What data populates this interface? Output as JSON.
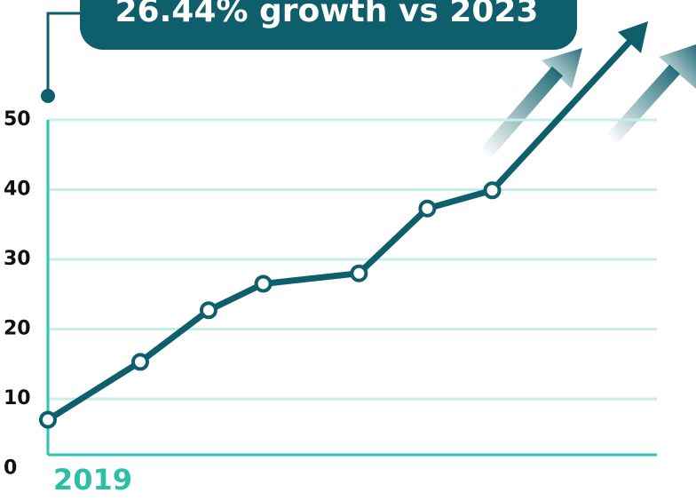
{
  "chart_data": {
    "type": "line",
    "title": "26.44% growth vs 2023",
    "categories": [
      "2019",
      null,
      null,
      null,
      null,
      null,
      null
    ],
    "x": [
      0,
      1.35,
      2.35,
      3.15,
      4.55,
      5.55,
      6.5
    ],
    "series": [
      {
        "name": null,
        "color": "#0e5f6b",
        "values": [
          7.0,
          15.3,
          22.7,
          26.5,
          28.0,
          37.3,
          39.9
        ]
      }
    ],
    "ylim": [
      0,
      50
    ],
    "yticks": [
      0,
      10,
      20,
      30,
      40,
      50
    ],
    "grid": true
  }
}
